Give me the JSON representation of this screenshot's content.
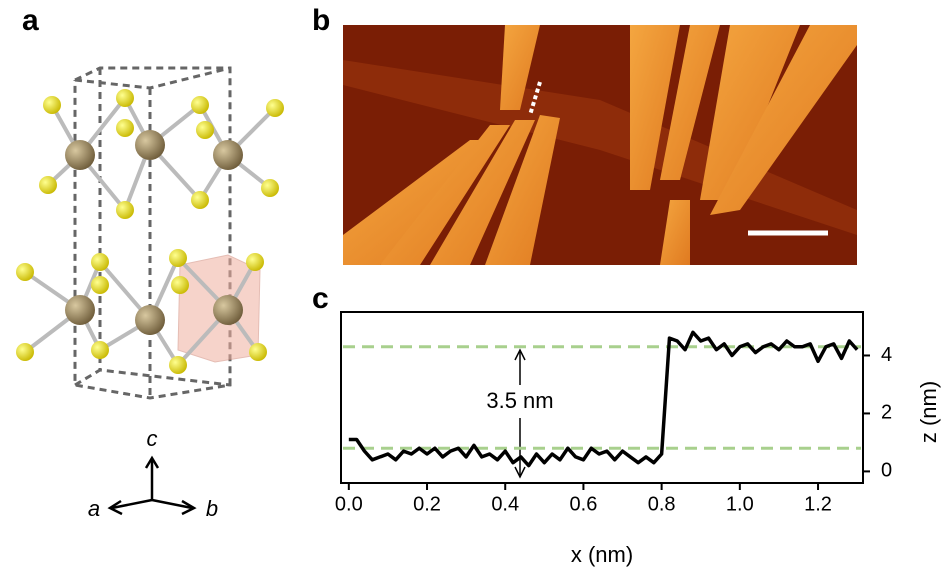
{
  "panel_labels": [
    "a",
    "b",
    "c"
  ],
  "crystal_axes": [
    "c",
    "a",
    "b"
  ],
  "chart_data": {
    "type": "line",
    "xlabel": "x (nm)",
    "ylabel": "z (nm)",
    "annotation": "3.5 nm",
    "x": [
      0,
      0.02,
      0.04,
      0.06,
      0.08,
      0.1,
      0.12,
      0.14,
      0.16,
      0.18,
      0.2,
      0.22,
      0.24,
      0.26,
      0.28,
      0.3,
      0.32,
      0.34,
      0.36,
      0.38,
      0.4,
      0.42,
      0.44,
      0.46,
      0.48,
      0.5,
      0.52,
      0.54,
      0.56,
      0.58,
      0.6,
      0.62,
      0.64,
      0.66,
      0.68,
      0.7,
      0.72,
      0.74,
      0.76,
      0.78,
      0.8,
      0.82,
      0.84,
      0.86,
      0.88,
      0.9,
      0.92,
      0.94,
      0.96,
      0.98,
      1,
      1.02,
      1.04,
      1.06,
      1.08,
      1.1,
      1.12,
      1.14,
      1.16,
      1.18,
      1.2,
      1.22,
      1.24,
      1.26,
      1.28,
      1.3
    ],
    "series": [
      {
        "color": "#000000",
        "values": [
          1.1,
          1.1,
          0.7,
          0.4,
          0.5,
          0.6,
          0.4,
          0.7,
          0.6,
          0.8,
          0.6,
          0.8,
          0.5,
          0.7,
          0.8,
          0.5,
          0.9,
          0.5,
          0.6,
          0.4,
          0.7,
          0.3,
          0.5,
          0.2,
          0.6,
          0.3,
          0.6,
          0.4,
          0.8,
          0.5,
          0.4,
          0.8,
          0.6,
          0.7,
          0.4,
          0.7,
          0.5,
          0.3,
          0.5,
          0.3,
          0.6,
          4.6,
          4.5,
          4.2,
          4.8,
          4.5,
          4.6,
          4.2,
          4.4,
          4.0,
          4.3,
          4.4,
          4.1,
          4.3,
          4.4,
          4.2,
          4.5,
          4.3,
          4.3,
          4.4,
          3.8,
          4.3,
          4.4,
          3.9,
          4.5,
          4.2
        ]
      }
    ],
    "reference_lines": [
      0.8,
      4.3
    ],
    "reference_color": "#a8d08d",
    "xlim": [
      -0.02,
      1.315
    ],
    "ylim": [
      -0.4,
      5.5
    ],
    "xticks": [
      {
        "value": 0,
        "label": "0.0"
      },
      0.2,
      0.4,
      0.6,
      0.8,
      {
        "value": 1,
        "label": "1.0"
      },
      1.2
    ],
    "yticks": [
      0,
      2,
      4
    ]
  }
}
